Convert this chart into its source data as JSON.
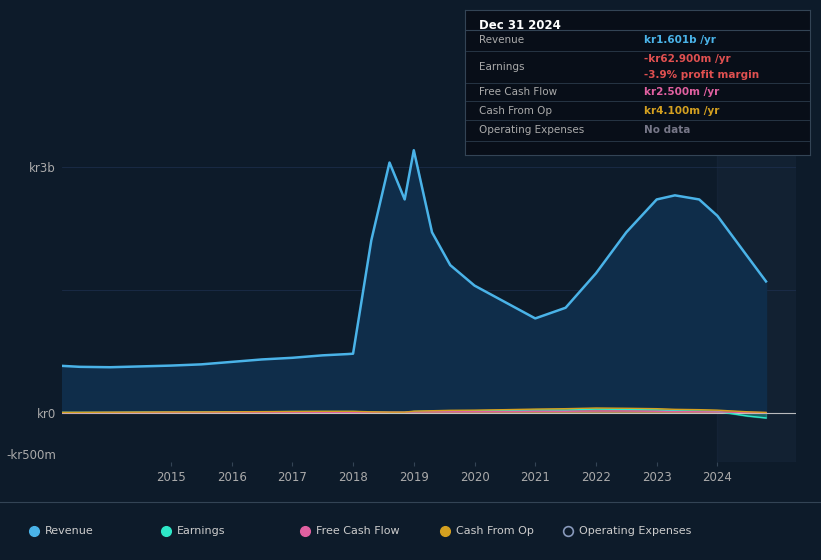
{
  "bg_color": "#0d1b2a",
  "plot_bg_color": "#0d1b2a",
  "grid_color": "#1e3050",
  "years": [
    2013.0,
    2013.5,
    2014.0,
    2014.5,
    2015.0,
    2015.5,
    2016.0,
    2016.5,
    2017.0,
    2017.5,
    2017.9,
    2018.0,
    2018.3,
    2018.6,
    2018.85,
    2019.0,
    2019.3,
    2019.6,
    2020.0,
    2020.5,
    2021.0,
    2021.5,
    2022.0,
    2022.5,
    2023.0,
    2023.3,
    2023.7,
    2024.0,
    2024.5,
    2024.8
  ],
  "revenue": [
    580,
    560,
    555,
    565,
    575,
    590,
    620,
    650,
    670,
    700,
    715,
    720,
    2100,
    3050,
    2600,
    3200,
    2200,
    1800,
    1550,
    1350,
    1150,
    1280,
    1700,
    2200,
    2600,
    2650,
    2600,
    2400,
    1900,
    1601
  ],
  "earnings": [
    5,
    5,
    5,
    8,
    8,
    10,
    12,
    12,
    15,
    15,
    15,
    15,
    10,
    5,
    5,
    15,
    20,
    20,
    25,
    28,
    35,
    32,
    45,
    40,
    35,
    25,
    20,
    15,
    -40,
    -63
  ],
  "free_cash_flow": [
    2,
    2,
    3,
    3,
    4,
    4,
    5,
    5,
    6,
    6,
    6,
    5,
    6,
    7,
    6,
    10,
    12,
    12,
    14,
    15,
    18,
    18,
    22,
    22,
    18,
    15,
    12,
    10,
    4,
    2.5
  ],
  "cash_from_op": [
    4,
    5,
    7,
    8,
    10,
    10,
    12,
    14,
    16,
    18,
    18,
    18,
    12,
    8,
    8,
    20,
    25,
    30,
    32,
    38,
    45,
    50,
    58,
    55,
    50,
    42,
    38,
    32,
    12,
    4.1
  ],
  "revenue_color": "#4ab3e8",
  "earnings_color": "#2ee8c8",
  "fcf_color": "#e060a0",
  "cashop_color": "#d4a020",
  "opex_color": "#8899bb",
  "revenue_fill": "#0f2d4a",
  "ylim_min": -600,
  "ylim_max": 3700,
  "xticks": [
    2015,
    2016,
    2017,
    2018,
    2019,
    2020,
    2021,
    2022,
    2023,
    2024
  ],
  "info_box": {
    "date": "Dec 31 2024",
    "rows": [
      {
        "label": "Revenue",
        "value": "kr1.601b",
        "value_color": "#4ab3e8",
        "suffix": " /yr",
        "extra": null,
        "extra_color": null
      },
      {
        "label": "Earnings",
        "value": "-kr62.900m",
        "value_color": "#e05050",
        "suffix": " /yr",
        "extra": "-3.9% profit margin",
        "extra_color": "#e05050"
      },
      {
        "label": "Free Cash Flow",
        "value": "kr2.500m",
        "value_color": "#e060a0",
        "suffix": " /yr",
        "extra": null,
        "extra_color": null
      },
      {
        "label": "Cash From Op",
        "value": "kr4.100m",
        "value_color": "#d4a020",
        "suffix": " /yr",
        "extra": null,
        "extra_color": null
      },
      {
        "label": "Operating Expenses",
        "value": "No data",
        "value_color": "#777788",
        "suffix": "",
        "extra": null,
        "extra_color": null
      }
    ]
  },
  "legend": [
    {
      "label": "Revenue",
      "color": "#4ab3e8",
      "filled": true
    },
    {
      "label": "Earnings",
      "color": "#2ee8c8",
      "filled": true
    },
    {
      "label": "Free Cash Flow",
      "color": "#e060a0",
      "filled": true
    },
    {
      "label": "Cash From Op",
      "color": "#d4a020",
      "filled": true
    },
    {
      "label": "Operating Expenses",
      "color": "#8899bb",
      "filled": false
    }
  ]
}
